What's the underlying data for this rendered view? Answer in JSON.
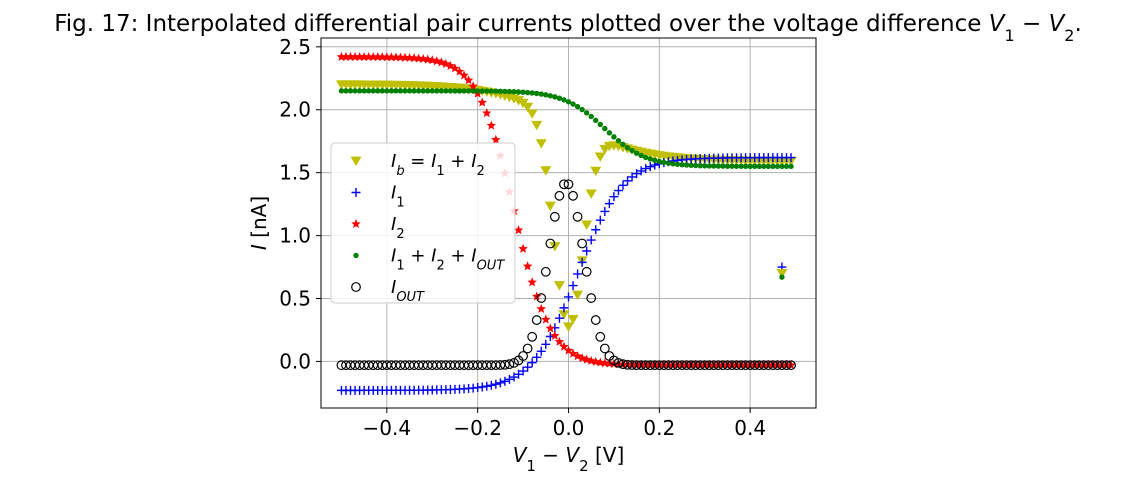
{
  "chart_data": {
    "type": "scatter",
    "title_parts": [
      {
        "t": "Fig. 17: Interpolated differential pair currents plotted over the voltage difference "
      },
      {
        "t": "V",
        "i": true
      },
      {
        "t": "1",
        "sub": true
      },
      {
        "t": " − "
      },
      {
        "t": "V",
        "i": true
      },
      {
        "t": "2",
        "sub": true
      },
      {
        "t": "."
      }
    ],
    "xlabel_parts": [
      {
        "t": "V",
        "i": true
      },
      {
        "t": "1",
        "sub": true
      },
      {
        "t": " − "
      },
      {
        "t": "V",
        "i": true
      },
      {
        "t": "2",
        "sub": true
      },
      {
        "t": " [V]"
      }
    ],
    "ylabel_parts": [
      {
        "t": "I",
        "i": true
      },
      {
        "t": " [nA]"
      }
    ],
    "xlim": [
      -0.545,
      0.545
    ],
    "ylim": [
      -0.37,
      2.57
    ],
    "x_ticks": [
      -0.4,
      -0.2,
      0.0,
      0.2,
      0.4
    ],
    "x_tick_labels": [
      "−0.4",
      "−0.2",
      "0.0",
      "0.2",
      "0.4"
    ],
    "y_ticks": [
      0.0,
      0.5,
      1.0,
      1.5,
      2.0,
      2.5
    ],
    "y_tick_labels": [
      "0.0",
      "0.5",
      "1.0",
      "1.5",
      "2.0",
      "2.5"
    ],
    "grid": true,
    "legend_position": "center-left",
    "series": [
      {
        "key": "ib",
        "name_parts": [
          {
            "t": "I",
            "i": true
          },
          {
            "t": "b",
            "sub": true,
            "i": true
          },
          {
            "t": " = "
          },
          {
            "t": "I",
            "i": true
          },
          {
            "t": "1",
            "sub": true
          },
          {
            "t": " + "
          },
          {
            "t": "I",
            "i": true
          },
          {
            "t": "2",
            "sub": true
          }
        ],
        "marker": "triangle-down",
        "color": "#bfbf00"
      },
      {
        "key": "i1",
        "name_parts": [
          {
            "t": "I",
            "i": true
          },
          {
            "t": "1",
            "sub": true
          }
        ],
        "marker": "plus",
        "color": "#0000ff"
      },
      {
        "key": "i2",
        "name_parts": [
          {
            "t": "I",
            "i": true
          },
          {
            "t": "2",
            "sub": true
          }
        ],
        "marker": "star",
        "color": "#ff0000"
      },
      {
        "key": "sum",
        "name_parts": [
          {
            "t": "I",
            "i": true
          },
          {
            "t": "1",
            "sub": true
          },
          {
            "t": " + "
          },
          {
            "t": "I",
            "i": true
          },
          {
            "t": "2",
            "sub": true
          },
          {
            "t": " + "
          },
          {
            "t": "I",
            "i": true
          },
          {
            "t": "OUT",
            "sub": true,
            "i": true
          }
        ],
        "marker": "dot",
        "color": "#008000"
      },
      {
        "key": "iout",
        "name_parts": [
          {
            "t": "I",
            "i": true
          },
          {
            "t": "OUT",
            "sub": true,
            "i": true
          }
        ],
        "marker": "circle-open",
        "color": "#000000"
      }
    ],
    "model": {
      "x_start": -0.5,
      "x_end": 0.49,
      "x_step": 0.01,
      "i1": {
        "low": -0.23,
        "high": 1.62,
        "center": 0.02,
        "width": 0.05
      },
      "i2": {
        "high": 2.42,
        "low": -0.03,
        "center": -0.12,
        "width": 0.04
      },
      "ib": {
        "base": 2.2,
        "tail": 1.59,
        "dip_center": 0.0,
        "dip_depth": 1.62,
        "dip_width": 0.045
      },
      "sum": {
        "high": 2.15,
        "low": 1.55,
        "center": 0.08,
        "width": 0.045
      },
      "iout": {
        "peak": 1.42,
        "center": -0.005,
        "width": 0.055,
        "base": -0.03
      }
    },
    "outliers": [
      {
        "series": "i1",
        "x": 0.47,
        "y": 0.75
      },
      {
        "series": "ib",
        "x": 0.47,
        "y": 0.7
      },
      {
        "series": "sum",
        "x": 0.47,
        "y": 0.67
      }
    ]
  }
}
